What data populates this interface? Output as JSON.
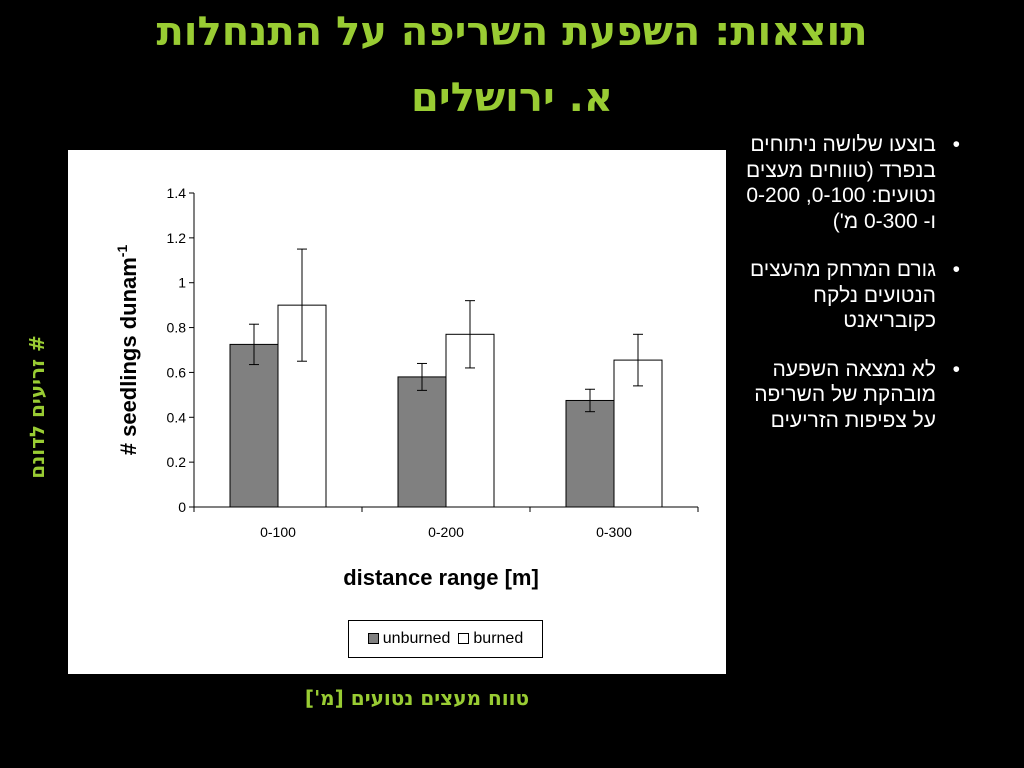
{
  "slide": {
    "title_line1": "תוצאות: השפעת השריפה על התנחלות",
    "title_line2": "א. ירושלים",
    "y_label_hebrew": "# זריעים לדונם",
    "x_label_hebrew": "טווח מעצים נטועים [מ']",
    "bullets": [
      "בוצעו שלושה ניתוחים בנפרד (טווחים מעצים נטועים: 0-100, 0-200 ו- 0-300 מ')",
      "גורם המרחק מהעצים הנטועים נלקח כקובריאנט",
      "לא נמצאה השפעה מובהקת של השריפה על צפיפות הזריעים"
    ],
    "bullet_symbol": "•"
  },
  "colors": {
    "background": "#000000",
    "title": "#99cc33",
    "bullet_text": "#ffffff",
    "unburned_fill": "#808080",
    "burned_fill": "#ffffff"
  },
  "chart_data": {
    "type": "bar",
    "categories": [
      "0-100",
      "0-200",
      "0-300"
    ],
    "series": [
      {
        "name": "unburned",
        "values": [
          0.725,
          0.58,
          0.475
        ],
        "errors": [
          0.09,
          0.06,
          0.05
        ]
      },
      {
        "name": "burned",
        "values": [
          0.9,
          0.77,
          0.655
        ],
        "errors": [
          0.25,
          0.15,
          0.115
        ]
      }
    ],
    "xlabel": "distance range [m]",
    "ylabel_main": "# seedlings dunam",
    "ylabel_sup": "-1",
    "ylim": [
      0,
      1.4
    ],
    "yticks": [
      "0",
      "0.2",
      "0.4",
      "0.6",
      "0.8",
      "1",
      "1.2",
      "1.4"
    ],
    "grid": false,
    "legend_position": "bottom-center"
  }
}
